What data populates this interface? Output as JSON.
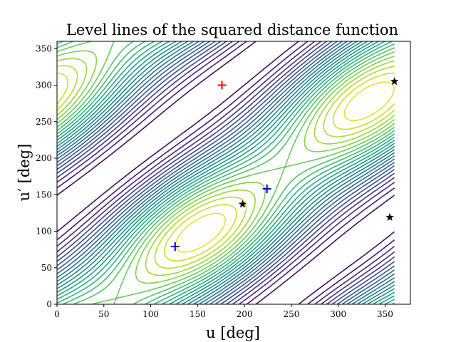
{
  "chart_data": {
    "type": "contour",
    "title": "Level lines of the squared distance function",
    "xlabel": "u [deg]",
    "ylabel": "u′ [deg]",
    "xlim": [
      0,
      377
    ],
    "ylim": [
      0,
      360
    ],
    "xticks": [
      0,
      50,
      100,
      150,
      200,
      250,
      300,
      350
    ],
    "yticks": [
      0,
      50,
      100,
      150,
      200,
      250,
      300,
      350
    ],
    "grid": false,
    "legend": "none",
    "colormap": "viridis",
    "domain": {
      "u": [
        0,
        360
      ],
      "u_prime": [
        0,
        360
      ]
    },
    "maxima": [
      {
        "u": 176,
        "u_prime": 300,
        "marker": "plus",
        "color": "#ff0000"
      }
    ],
    "critical_points_plus": [
      {
        "u": 126,
        "u_prime": 79,
        "marker": "plus",
        "color": "#0000cc"
      },
      {
        "u": 224,
        "u_prime": 158,
        "marker": "plus",
        "color": "#0000cc"
      }
    ],
    "critical_points_star": [
      {
        "u": 198,
        "u_prime": 137,
        "marker": "star",
        "color": "#000000"
      },
      {
        "u": 360,
        "u_prime": 305,
        "marker": "star",
        "color": "#000000"
      },
      {
        "u": 355,
        "u_prime": 119,
        "marker": "star",
        "color": "#000000"
      }
    ]
  }
}
